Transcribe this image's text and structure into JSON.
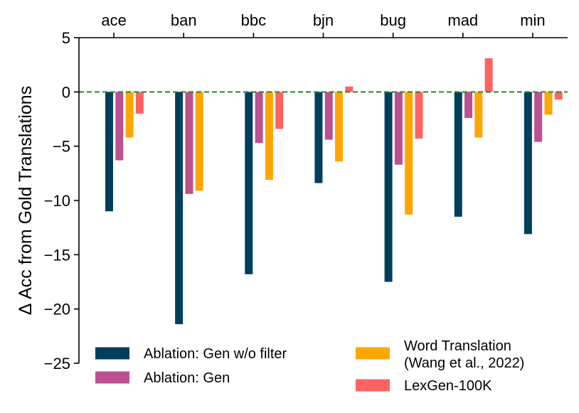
{
  "chart_data": {
    "type": "bar",
    "title": "",
    "xlabel": "",
    "ylabel": "Δ Acc from Gold Translations",
    "ylim": [
      -25,
      5
    ],
    "yticks": [
      5,
      0,
      -5,
      -10,
      -15,
      -20,
      -25
    ],
    "ytick_labels": [
      "5",
      "0",
      "−5",
      "−10",
      "−15",
      "−20",
      "−25"
    ],
    "category_axis_position": "top",
    "reference_line": {
      "y": 0,
      "style": "dashed",
      "color": "#228b22"
    },
    "categories": [
      "ace",
      "ban",
      "bbc",
      "bjn",
      "bug",
      "mad",
      "min"
    ],
    "series": [
      {
        "name": "Ablation: Gen w/o filter",
        "color": "#003f5c",
        "values": [
          -11.0,
          -21.4,
          -16.8,
          -8.4,
          -17.5,
          -11.5,
          -13.1
        ]
      },
      {
        "name": "Ablation: Gen",
        "color": "#bc5090",
        "values": [
          -6.3,
          -9.4,
          -4.7,
          -4.4,
          -6.7,
          -2.4,
          -4.6
        ]
      },
      {
        "name": "Word Translation\n(Wang et al., 2022)",
        "color": "#ffa600",
        "values": [
          -4.2,
          -9.1,
          -8.1,
          -6.4,
          -11.3,
          -4.2,
          -2.1
        ]
      },
      {
        "name": "LexGen-100K",
        "color": "#ff6361",
        "values": [
          -2.0,
          0.0,
          -3.4,
          0.5,
          -4.3,
          3.1,
          -0.7
        ]
      }
    ],
    "legend": {
      "placement": "bottom",
      "columns": 2,
      "entries": [
        {
          "lines": [
            "Ablation: Gen w/o filter"
          ],
          "color": "#003f5c"
        },
        {
          "lines": [
            "Ablation: Gen"
          ],
          "color": "#bc5090"
        },
        {
          "lines": [
            "Word Translation",
            "(Wang et al., 2022)"
          ],
          "color": "#ffa600"
        },
        {
          "lines": [
            "LexGen-100K"
          ],
          "color": "#ff6361"
        }
      ]
    }
  }
}
